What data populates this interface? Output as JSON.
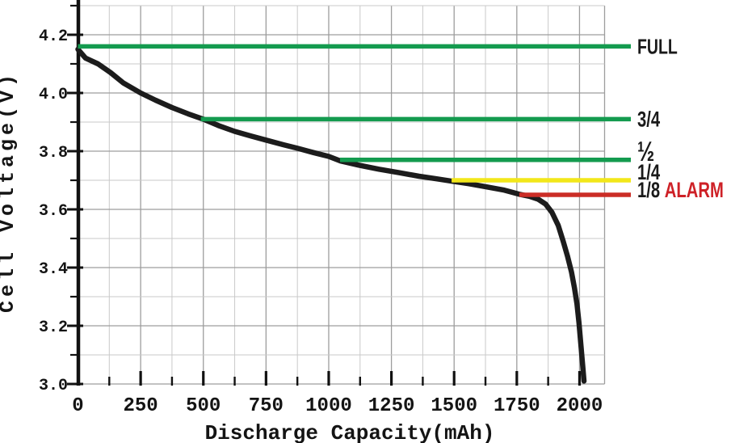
{
  "chart_data": {
    "type": "line",
    "xlabel": "Discharge Capacity(mAh)",
    "ylabel": "Cell Voltage(V)",
    "xlim": [
      0,
      2100
    ],
    "ylim": [
      3.0,
      4.3
    ],
    "x_minor_step": 125,
    "y_minor_step": 0.1,
    "grid": true,
    "legend_position": "right",
    "x_ticks": [
      {
        "value": 0,
        "label": "0"
      },
      {
        "value": 250,
        "label": "250"
      },
      {
        "value": 500,
        "label": "500"
      },
      {
        "value": 750,
        "label": "750"
      },
      {
        "value": 1000,
        "label": "1000"
      },
      {
        "value": 1250,
        "label": "1250"
      },
      {
        "value": 1500,
        "label": "1500"
      },
      {
        "value": 1750,
        "label": "1750"
      },
      {
        "value": 2000,
        "label": "2000"
      }
    ],
    "y_ticks": [
      {
        "value": 4.2,
        "label": "4.2"
      },
      {
        "value": 4.0,
        "label": "4.0"
      },
      {
        "value": 3.8,
        "label": "3.8"
      },
      {
        "value": 3.6,
        "label": "3.6"
      },
      {
        "value": 3.4,
        "label": "3.4"
      },
      {
        "value": 3.2,
        "label": "3.2"
      },
      {
        "value": 3.0,
        "label": "3.0"
      }
    ],
    "series": [
      {
        "name": "li-ion-discharge-curve",
        "color": "#1c1c1c",
        "points": [
          [
            0,
            4.15
          ],
          [
            30,
            4.12
          ],
          [
            80,
            4.1
          ],
          [
            130,
            4.07
          ],
          [
            180,
            4.035
          ],
          [
            250,
            4.0
          ],
          [
            310,
            3.975
          ],
          [
            375,
            3.95
          ],
          [
            440,
            3.928
          ],
          [
            500,
            3.91
          ],
          [
            560,
            3.888
          ],
          [
            625,
            3.868
          ],
          [
            690,
            3.852
          ],
          [
            750,
            3.838
          ],
          [
            820,
            3.822
          ],
          [
            875,
            3.81
          ],
          [
            940,
            3.795
          ],
          [
            1000,
            3.782
          ],
          [
            1045,
            3.767
          ],
          [
            1120,
            3.752
          ],
          [
            1200,
            3.738
          ],
          [
            1280,
            3.726
          ],
          [
            1360,
            3.714
          ],
          [
            1430,
            3.705
          ],
          [
            1490,
            3.697
          ],
          [
            1560,
            3.688
          ],
          [
            1625,
            3.678
          ],
          [
            1700,
            3.666
          ],
          [
            1760,
            3.652
          ],
          [
            1800,
            3.645
          ],
          [
            1835,
            3.635
          ],
          [
            1865,
            3.618
          ],
          [
            1890,
            3.59
          ],
          [
            1915,
            3.545
          ],
          [
            1935,
            3.49
          ],
          [
            1952,
            3.44
          ],
          [
            1968,
            3.385
          ],
          [
            1980,
            3.33
          ],
          [
            1990,
            3.275
          ],
          [
            1998,
            3.21
          ],
          [
            2006,
            3.13
          ],
          [
            2013,
            3.06
          ],
          [
            2018,
            3.01
          ]
        ]
      }
    ],
    "thresholds": [
      {
        "label": "FULL",
        "voltage": 4.16,
        "start_mah": 0,
        "line_color": "#149b4f",
        "label_color": "#1a1a1a"
      },
      {
        "label": "3/4",
        "voltage": 3.91,
        "start_mah": 490,
        "line_color": "#149b4f",
        "label_color": "#1a1a1a"
      },
      {
        "label": "½",
        "voltage": 3.77,
        "start_mah": 1045,
        "line_color": "#149b4f",
        "label_color": "#1a1a1a"
      },
      {
        "label": "1/4",
        "voltage": 3.7,
        "start_mah": 1490,
        "line_color": "#f2e71a",
        "label_color": "#1a1a1a"
      },
      {
        "label": "1/8",
        "voltage": 3.65,
        "start_mah": 1760,
        "line_color": "#cb2d26",
        "label_color": "#1a1a1a",
        "suffix": "ALARM",
        "suffix_color": "#ce2127"
      }
    ],
    "colors": {
      "grid_major": "#9d9d9d",
      "grid_minor": "#c9c9c9",
      "axis": "#111111",
      "background": "#ffffff"
    }
  }
}
